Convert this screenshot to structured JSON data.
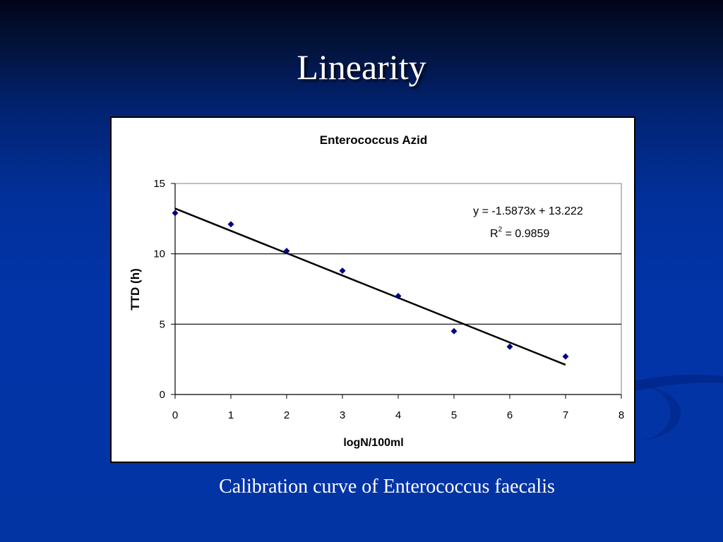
{
  "slide": {
    "title": "Linearity",
    "caption": "Calibration curve of Enterococcus faecalis",
    "background_color": "#0234a8"
  },
  "chart_data": {
    "type": "scatter",
    "title": "Enterococcus Azid",
    "xlabel": "logN/100ml",
    "ylabel": "TTD (h)",
    "xlim": [
      0,
      8
    ],
    "ylim": [
      0,
      15
    ],
    "xticks": [
      0,
      1,
      2,
      3,
      4,
      5,
      6,
      7,
      8
    ],
    "yticks": [
      0,
      5,
      10,
      15
    ],
    "grid": "horizontal major gridlines",
    "legend": "none",
    "series": [
      {
        "name": "TTD",
        "marker": "diamond",
        "color": "#000080",
        "x": [
          0,
          1,
          2,
          3,
          4,
          5,
          6,
          7
        ],
        "y": [
          12.9,
          12.1,
          10.2,
          8.8,
          7.0,
          4.5,
          3.4,
          2.7
        ]
      }
    ],
    "trendline": {
      "type": "linear",
      "slope": -1.5873,
      "intercept": 13.222,
      "x_range": [
        0,
        7
      ],
      "equation": "y = -1.5873x + 13.222",
      "r_squared_label": "R",
      "r_squared_sup": "2",
      "r_squared_value": " = 0.9859",
      "color": "#000000"
    }
  }
}
